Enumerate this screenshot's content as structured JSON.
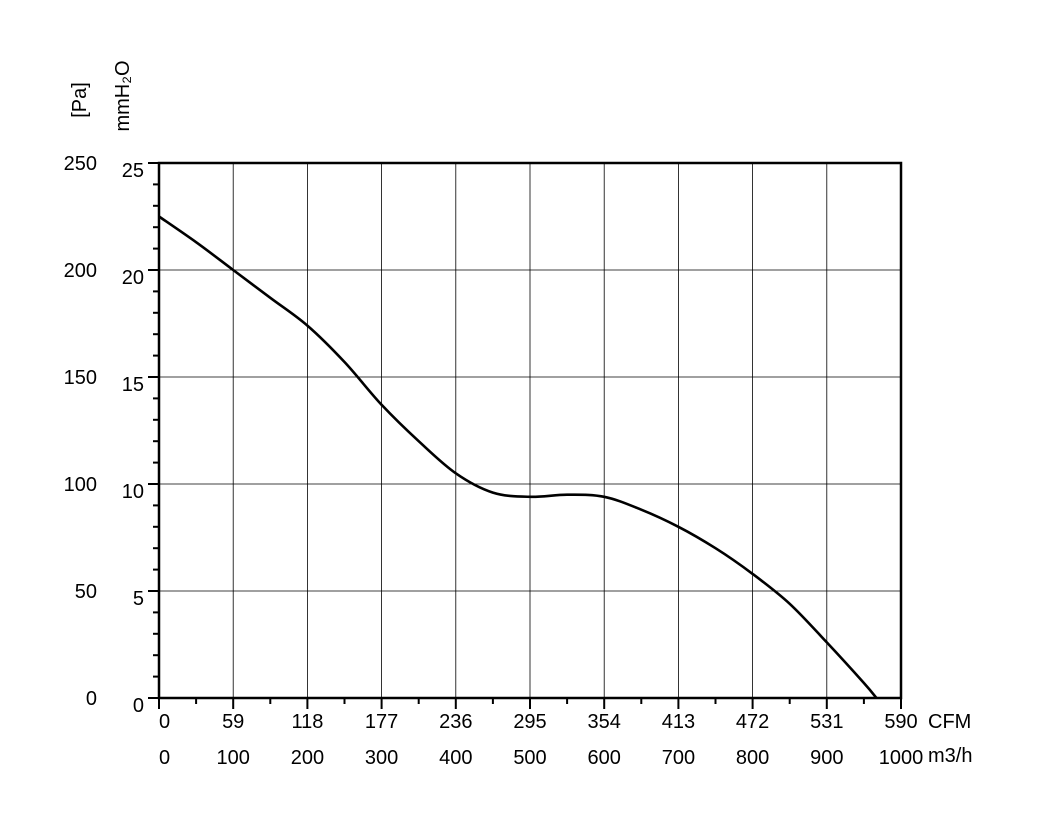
{
  "chart_data": {
    "type": "line",
    "y_axis_primary": {
      "label": "[Pa]",
      "ticks": [
        "0",
        "50",
        "100",
        "150",
        "200",
        "250"
      ],
      "range": [
        0,
        250
      ]
    },
    "y_axis_secondary": {
      "label": "mmH₂O",
      "ticks": [
        "0",
        "5",
        "10",
        "15",
        "20",
        "25"
      ],
      "range": [
        0,
        25
      ]
    },
    "x_axis_primary": {
      "label": "CFM",
      "ticks": [
        "0",
        "59",
        "118",
        "177",
        "236",
        "295",
        "354",
        "413",
        "472",
        "531",
        "590"
      ]
    },
    "x_axis_secondary": {
      "label": "m3/h",
      "ticks": [
        "0",
        "100",
        "200",
        "300",
        "400",
        "500",
        "600",
        "700",
        "800",
        "900",
        "1000"
      ],
      "range": [
        0,
        1000
      ]
    },
    "grid": true,
    "series": [
      {
        "x": [
          0,
          50,
          100,
          150,
          200,
          250,
          300,
          350,
          400,
          450,
          500,
          550,
          600,
          650,
          700,
          750,
          800,
          850,
          900,
          950,
          967
        ],
        "y": [
          225,
          213,
          200,
          187,
          174,
          157,
          137,
          120,
          105,
          96,
          94,
          95,
          94,
          88,
          80,
          70,
          58,
          44,
          26,
          7,
          0
        ]
      }
    ]
  }
}
